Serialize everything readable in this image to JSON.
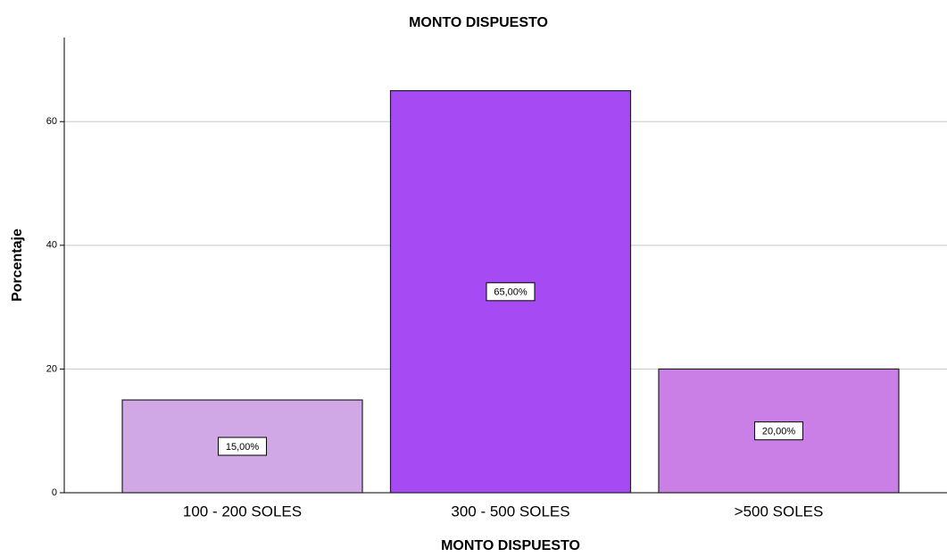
{
  "chart_data": {
    "type": "bar",
    "title": "MONTO DISPUESTO",
    "x_label": "MONTO DISPUESTO",
    "y_label": "Porcentaje",
    "categories": [
      "100 - 200 SOLES",
      "300 - 500 SOLES",
      ">500 SOLES"
    ],
    "values": [
      15,
      65,
      20
    ],
    "value_labels": [
      "15,00%",
      "65,00%",
      "20,00%"
    ],
    "colors": [
      "#d1a8e6",
      "#a64af4",
      "#c97fe6"
    ],
    "ylim": [
      0,
      73.6
    ],
    "yticks": [
      0,
      20,
      40,
      60
    ],
    "grid": true
  }
}
